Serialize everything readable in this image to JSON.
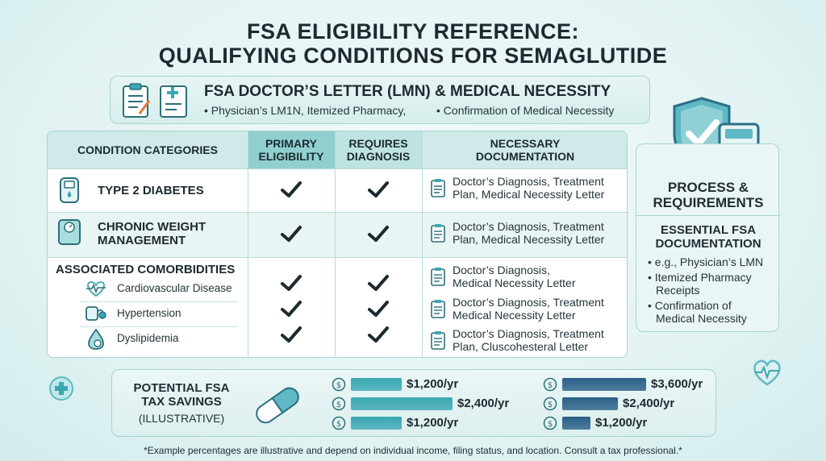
{
  "title": {
    "line1": "FSA ELIGIBILITY REFERENCE:",
    "line2": "QUALIFYING CONDITIONS FOR SEMAGLUTIDE"
  },
  "lmn": {
    "title": "FSA DOCTOR’S LETTER (LMN) & MEDICAL NECESSITY",
    "bullet1": "• Physician’s LM1N, Itemized Pharmacy,",
    "bullet2": "• Confirmation of Medical Necessity",
    "icons": [
      "clipboard-icon",
      "medical-document-icon"
    ]
  },
  "table": {
    "headers": {
      "conditions": "CONDITION CATEGORIES",
      "primary_line1": "PRIMARY",
      "primary_line2": "ELIGIBILITY",
      "diagnosis_line1": "REQUIRES",
      "diagnosis_line2": "DIAGNOSIS",
      "documentation_line1": "NECESSARY",
      "documentation_line2": "DOCUMENTATION"
    },
    "rows": [
      {
        "label": "TYPE 2 DIABETES",
        "icon": "glucose-meter-icon",
        "primary": true,
        "diagnosis": true,
        "doc_line1": "Doctor’s Diagnosis, Treatment",
        "doc_line2": "Plan, Medical Necessity Letter"
      },
      {
        "label_line1": "CHRONIC WEIGHT",
        "label_line2": "MANAGEMENT",
        "icon": "scale-icon",
        "primary": true,
        "diagnosis": true,
        "doc_line1": "Doctor’s Diagnosis, Treatment",
        "doc_line2": "Plan, Medical Necessity Letter"
      }
    ],
    "comorbidities": {
      "label": "ASSOCIATED COMORBIDITIES",
      "items": [
        {
          "label": "Cardiovascular Disease",
          "icon": "heartbeat-icon",
          "primary": true,
          "diagnosis": true,
          "doc_line1": "Doctor’s Diagnosis,",
          "doc_line2": "Medical Necessity Letter"
        },
        {
          "label": "Hypertension",
          "icon": "blood-pressure-icon",
          "primary": true,
          "diagnosis": true,
          "doc_line1": "Doctor’s Diagnosis, Treatment",
          "doc_line2": "Medical Necessity Letter"
        },
        {
          "label": "Dyslipidemia",
          "icon": "blood-drop-icon",
          "primary": true,
          "diagnosis": true,
          "doc_line1": "Doctor’s Diagnosis, Treatment",
          "doc_line2": "Plan, Cluscohesteral Letter"
        }
      ]
    }
  },
  "side_panel": {
    "title_line1": "PROCESS &",
    "title_line2": "REQUIREMENTS",
    "sub_line1": "ESSENTIAL FSA",
    "sub_line2": "DOCUMENTATION",
    "items": [
      {
        "line1": "• e.g., Physician’s LMN",
        "line2": ""
      },
      {
        "line1": "• Itemized Pharmacy",
        "line2": "Receipts"
      },
      {
        "line1": "• Confirmation of",
        "line2": "Medical Necessity"
      }
    ],
    "icons": [
      "shield-check-icon",
      "calculator-icon"
    ]
  },
  "savings": {
    "title_line1": "POTENTIAL FSA",
    "title_line2": "TAX SAVINGS",
    "subtitle": "(ILLUSTRATIVE)",
    "left_bars": [
      {
        "label": "$1,200/yr",
        "value": 1200,
        "color": "#3aa7b3"
      },
      {
        "label": "$2,400/yr",
        "value": 2400,
        "color": "#3aa7b3"
      },
      {
        "label": "$1,200/yr",
        "value": 1200,
        "color": "#3aa7b3"
      }
    ],
    "right_bars": [
      {
        "label": "$3,600/yr",
        "value": 3600,
        "color": "#2a5f88"
      },
      {
        "label": "$2,400/yr",
        "value": 2400,
        "color": "#2a5f88"
      },
      {
        "label": "$1,200/yr",
        "value": 1200,
        "color": "#2a5f88"
      }
    ]
  },
  "footnote": "*Example percentages are illustrative and depend on individual income, filing status, and location. Consult a tax professional.*",
  "colors": {
    "teal": "#3aa7b3",
    "navy": "#2a5f88",
    "header_primary": "#8fd0cf",
    "accent_light": "#cfeae8"
  }
}
